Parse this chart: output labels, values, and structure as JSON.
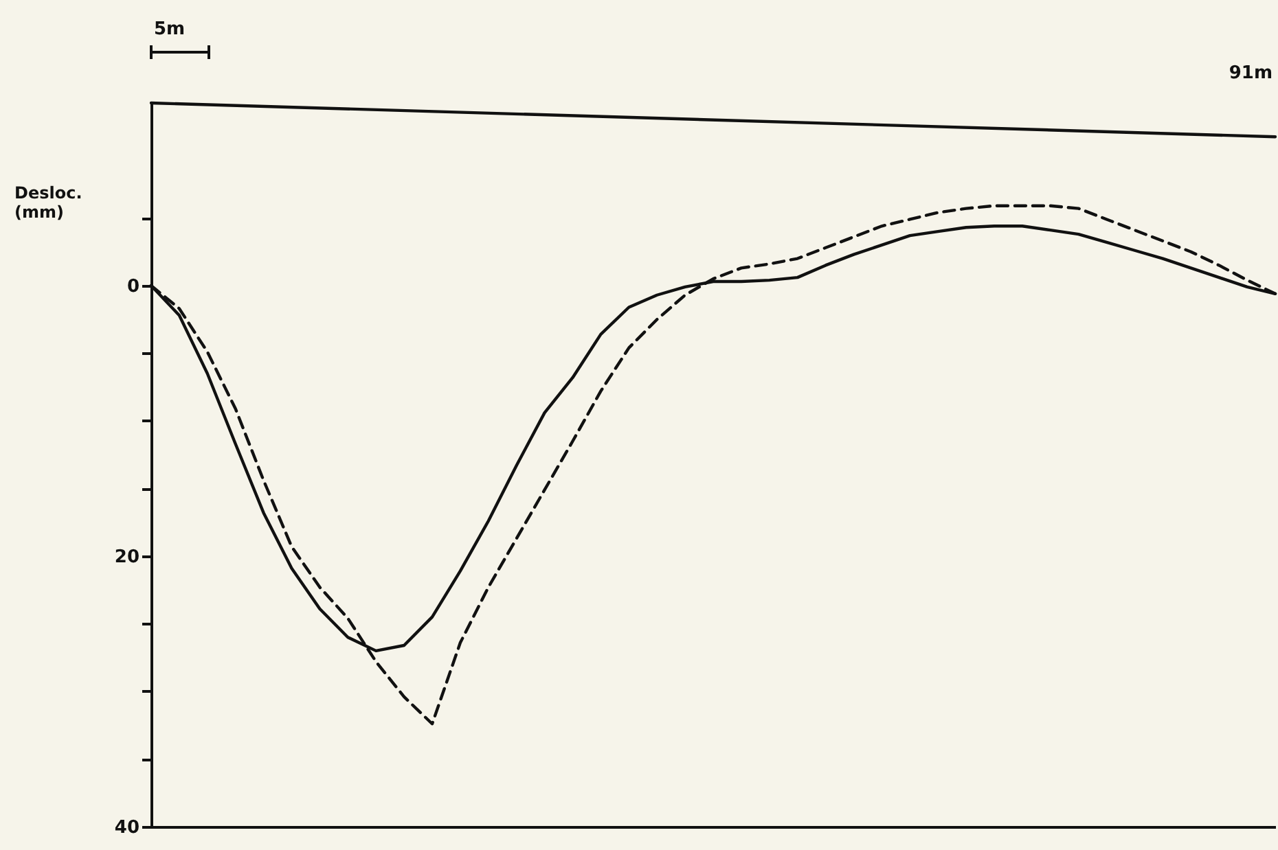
{
  "chart_data": {
    "type": "line",
    "ylabel": "Desloc. (mm)",
    "annotations": [
      "5m",
      "91m"
    ],
    "categories": [
      null,
      null,
      null,
      null,
      null,
      null,
      null,
      null,
      null,
      null,
      null,
      null,
      null,
      null,
      null,
      null,
      null,
      null,
      null,
      null,
      null,
      null,
      null,
      null,
      null,
      null,
      null,
      null,
      null,
      null,
      null,
      null,
      null,
      null,
      null,
      null,
      null,
      null,
      null,
      null,
      null
    ],
    "ylim": [
      40,
      -13.5
    ],
    "yticks": [
      {
        "value": -5,
        "label": null
      },
      0,
      {
        "value": 5,
        "label": null
      },
      {
        "value": 10,
        "label": null
      },
      {
        "value": 15,
        "label": null
      },
      20,
      {
        "value": 25,
        "label": null
      },
      {
        "value": 30,
        "label": null
      },
      {
        "value": 35,
        "label": null
      },
      40
    ],
    "tick_labels": "y",
    "grid": false,
    "marker": "none",
    "series": [
      {
        "color": "#111111",
        "line_style": "solid",
        "values": [
          -13.5,
          null,
          null,
          null,
          null,
          null,
          null,
          null,
          null,
          null,
          null,
          null,
          null,
          null,
          null,
          null,
          null,
          null,
          null,
          null,
          null,
          null,
          null,
          null,
          null,
          null,
          null,
          null,
          null,
          null,
          null,
          null,
          null,
          null,
          null,
          null,
          null,
          null,
          null,
          null,
          -11
        ]
      },
      {
        "color": "#111111",
        "line_style": "solid",
        "values": [
          0,
          2.2,
          6.5,
          11.7,
          16.8,
          20.9,
          23.9,
          26.0,
          27.0,
          26.6,
          24.5,
          21.1,
          17.4,
          13.3,
          9.4,
          6.8,
          3.6,
          1.6,
          0.7,
          0.1,
          -0.3,
          -0.3,
          -0.4,
          -0.6,
          -1.5,
          -2.3,
          -3.0,
          -3.7,
          -4.0,
          -4.3,
          -4.4,
          -4.4,
          -4.1,
          -3.8,
          -3.2,
          -2.6,
          -2.0,
          -1.3,
          -0.6,
          0.1,
          0.6
        ]
      },
      {
        "color": "#111111",
        "line_style": "dashed",
        "values": [
          0,
          1.7,
          4.9,
          9.1,
          14.4,
          19.3,
          22.3,
          24.6,
          27.8,
          30.4,
          32.4,
          26.4,
          22.3,
          18.7,
          15.1,
          11.5,
          7.8,
          4.6,
          2.5,
          0.7,
          -0.5,
          -1.3,
          -1.6,
          -2.0,
          -2.8,
          -3.6,
          -4.4,
          -4.9,
          -5.4,
          -5.7,
          -5.9,
          -5.9,
          -5.9,
          -5.7,
          -4.9,
          -4.1,
          -3.3,
          -2.5,
          -1.5,
          -0.4,
          0.6
        ]
      }
    ]
  }
}
